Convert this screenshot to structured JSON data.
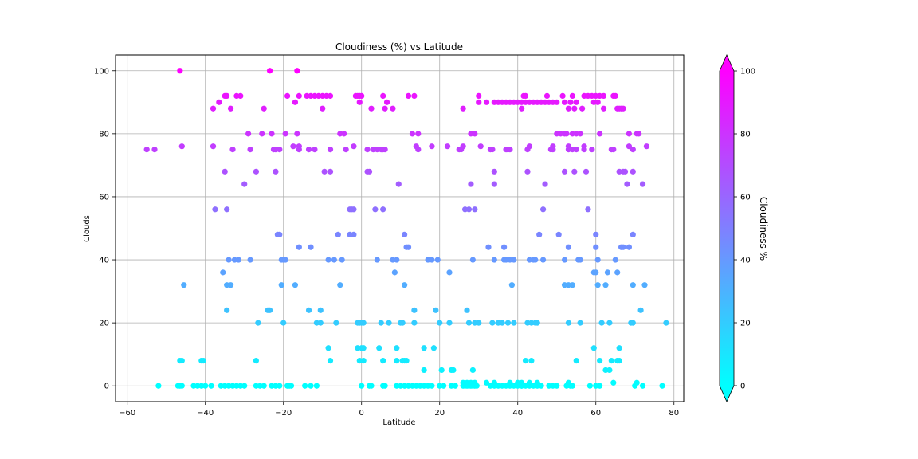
{
  "chart_data": {
    "type": "scatter",
    "title": "Cloudiness (%) vs Latitude",
    "xlabel": "Latitude",
    "ylabel": "Clouds",
    "xlim": [
      -63,
      82.5
    ],
    "ylim": [
      -5,
      105
    ],
    "xticks": [
      -60,
      -40,
      -20,
      0,
      20,
      40,
      60,
      80
    ],
    "yticks": [
      0,
      20,
      40,
      60,
      80,
      100
    ],
    "grid": true,
    "colorbar": {
      "label": "Cloudiness %",
      "ticks": [
        0,
        20,
        40,
        60,
        80,
        100
      ],
      "colormap": "cool",
      "color_low": "#00ffff",
      "color_high": "#ff00ff",
      "extend": "both"
    },
    "points": [
      [
        -55,
        75
      ],
      [
        -53,
        75
      ],
      [
        -46.5,
        100
      ],
      [
        -46,
        76
      ],
      [
        -45.5,
        32
      ],
      [
        -46.5,
        8
      ],
      [
        -46,
        8
      ],
      [
        -52,
        0
      ],
      [
        -47,
        0
      ],
      [
        -46.5,
        0
      ],
      [
        -46,
        0
      ],
      [
        -38,
        88
      ],
      [
        -38,
        76
      ],
      [
        -37.5,
        56
      ],
      [
        -36.5,
        90
      ],
      [
        -35,
        92
      ],
      [
        -34.5,
        92
      ],
      [
        -35,
        68
      ],
      [
        -34.5,
        56
      ],
      [
        -35.5,
        36
      ],
      [
        -34.5,
        32
      ],
      [
        -34,
        40
      ],
      [
        -33.5,
        32
      ],
      [
        -34.5,
        24
      ],
      [
        -33.5,
        88
      ],
      [
        -33,
        75
      ],
      [
        -32,
        92
      ],
      [
        -31,
        92
      ],
      [
        -31.5,
        40
      ],
      [
        -32.5,
        40
      ],
      [
        -30,
        64
      ],
      [
        -29,
        80
      ],
      [
        -28.5,
        75
      ],
      [
        -28.5,
        40
      ],
      [
        -43,
        0
      ],
      [
        -42,
        0
      ],
      [
        -41,
        0
      ],
      [
        -40,
        0
      ],
      [
        -41,
        8
      ],
      [
        -40.5,
        8
      ],
      [
        -38.5,
        0
      ],
      [
        -36,
        0
      ],
      [
        -35,
        0
      ],
      [
        -34,
        0
      ],
      [
        -33,
        0
      ],
      [
        -32,
        0
      ],
      [
        -31,
        0
      ],
      [
        -30,
        0
      ],
      [
        -27,
        68
      ],
      [
        -26.5,
        20
      ],
      [
        -27,
        8
      ],
      [
        -27,
        0
      ],
      [
        -26,
        0
      ],
      [
        -25,
        0
      ],
      [
        -23,
        0
      ],
      [
        -22,
        0
      ],
      [
        -21,
        0
      ],
      [
        -24,
        24
      ],
      [
        -23.5,
        24
      ],
      [
        -25,
        88
      ],
      [
        -25.5,
        80
      ],
      [
        -23.5,
        100
      ],
      [
        -23,
        80
      ],
      [
        -22.5,
        75
      ],
      [
        -22,
        68
      ],
      [
        -22,
        75
      ],
      [
        -21.5,
        48
      ],
      [
        -21,
        48
      ],
      [
        -21,
        75
      ],
      [
        -20.5,
        40
      ],
      [
        -20,
        40
      ],
      [
        -19.5,
        40
      ],
      [
        -20.5,
        32
      ],
      [
        -20,
        20
      ],
      [
        -19,
        92
      ],
      [
        -19.5,
        80
      ],
      [
        -18.5,
        0
      ],
      [
        -19,
        0
      ],
      [
        -18,
        0
      ],
      [
        -17.5,
        76
      ],
      [
        -17,
        90
      ],
      [
        -16.5,
        100
      ],
      [
        -16.5,
        80
      ],
      [
        -16,
        76
      ],
      [
        -16,
        75
      ],
      [
        -16,
        92
      ],
      [
        -16,
        44
      ],
      [
        -17,
        32
      ],
      [
        -14,
        92
      ],
      [
        -13,
        92
      ],
      [
        -12,
        92
      ],
      [
        -11,
        92
      ],
      [
        -13.5,
        75
      ],
      [
        -12,
        75
      ],
      [
        -13,
        44
      ],
      [
        -13.5,
        24
      ],
      [
        -11.5,
        20
      ],
      [
        -10.5,
        20
      ],
      [
        -10.5,
        24
      ],
      [
        -11.5,
        0
      ],
      [
        -14.5,
        0
      ],
      [
        -13,
        0
      ],
      [
        -10,
        88
      ],
      [
        -10,
        92
      ],
      [
        -9,
        92
      ],
      [
        -8,
        92
      ],
      [
        -9.5,
        68
      ],
      [
        -8,
        68
      ],
      [
        -8,
        75
      ],
      [
        -8.5,
        40
      ],
      [
        -7,
        40
      ],
      [
        -6,
        48
      ],
      [
        -5,
        40
      ],
      [
        -5.5,
        32
      ],
      [
        -6.5,
        20
      ],
      [
        -8.5,
        12
      ],
      [
        -8,
        8
      ],
      [
        -5.5,
        80
      ],
      [
        -4.5,
        80
      ],
      [
        -4,
        75
      ],
      [
        -3,
        56
      ],
      [
        -2.5,
        56
      ],
      [
        -2,
        56
      ],
      [
        -3,
        48
      ],
      [
        -2,
        48
      ],
      [
        -2,
        76
      ],
      [
        -1.5,
        92
      ],
      [
        -1,
        92
      ],
      [
        -0.5,
        92
      ],
      [
        0,
        92
      ],
      [
        -0.5,
        90
      ],
      [
        -1,
        20
      ],
      [
        -0.5,
        20
      ],
      [
        0,
        20
      ],
      [
        0.5,
        20
      ],
      [
        -1,
        12
      ],
      [
        0,
        12
      ],
      [
        0.5,
        12
      ],
      [
        -0.5,
        8
      ],
      [
        0.5,
        8
      ],
      [
        0,
        0
      ],
      [
        1.5,
        75
      ],
      [
        1.5,
        68
      ],
      [
        2,
        68
      ],
      [
        2.5,
        0
      ],
      [
        2,
        0
      ],
      [
        2.5,
        88
      ],
      [
        3,
        75
      ],
      [
        3.5,
        56
      ],
      [
        4,
        40
      ],
      [
        4,
        75
      ],
      [
        4.5,
        12
      ],
      [
        5,
        20
      ],
      [
        5.5,
        8
      ],
      [
        5.5,
        0
      ],
      [
        6,
        0
      ],
      [
        5,
        75
      ],
      [
        5.5,
        75
      ],
      [
        6,
        75
      ],
      [
        5.5,
        56
      ],
      [
        5.5,
        92
      ],
      [
        6,
        88
      ],
      [
        6.5,
        90
      ],
      [
        7,
        20
      ],
      [
        8,
        88
      ],
      [
        8,
        40
      ],
      [
        8.5,
        36
      ],
      [
        9,
        40
      ],
      [
        9,
        8
      ],
      [
        9,
        12
      ],
      [
        9.5,
        64
      ],
      [
        10,
        20
      ],
      [
        10.5,
        20
      ],
      [
        11,
        48
      ],
      [
        11,
        32
      ],
      [
        11.5,
        44
      ],
      [
        12,
        44
      ],
      [
        11,
        8
      ],
      [
        10.5,
        8
      ],
      [
        11.5,
        8
      ],
      [
        12,
        92
      ],
      [
        13,
        80
      ],
      [
        13.5,
        92
      ],
      [
        13.5,
        20
      ],
      [
        13.5,
        24
      ],
      [
        9,
        0
      ],
      [
        10,
        0
      ],
      [
        11,
        0
      ],
      [
        12,
        0
      ],
      [
        13,
        0
      ],
      [
        14,
        0
      ],
      [
        15,
        0
      ],
      [
        16,
        0
      ],
      [
        17,
        0
      ],
      [
        18,
        0
      ],
      [
        14.5,
        80
      ],
      [
        14,
        76
      ],
      [
        14.5,
        75
      ],
      [
        16,
        12
      ],
      [
        16,
        5
      ],
      [
        17,
        40
      ],
      [
        18,
        40
      ],
      [
        18,
        76
      ],
      [
        18.5,
        12
      ],
      [
        19,
        24
      ],
      [
        19.5,
        40
      ],
      [
        20,
        0
      ],
      [
        20,
        20
      ],
      [
        20.5,
        5
      ],
      [
        21,
        0
      ],
      [
        22,
        76
      ],
      [
        22.5,
        36
      ],
      [
        22.5,
        20
      ],
      [
        23,
        5
      ],
      [
        23.5,
        5
      ],
      [
        23,
        0
      ],
      [
        24,
        0
      ],
      [
        25,
        75
      ],
      [
        25.5,
        75
      ],
      [
        26,
        76
      ],
      [
        26,
        88
      ],
      [
        26.5,
        56
      ],
      [
        27,
        24
      ],
      [
        27.5,
        56
      ],
      [
        27.5,
        20
      ],
      [
        28,
        80
      ],
      [
        28,
        64
      ],
      [
        28.5,
        40
      ],
      [
        28.5,
        5
      ],
      [
        29,
        80
      ],
      [
        29,
        56
      ],
      [
        29,
        20
      ],
      [
        30,
        20
      ],
      [
        26,
        0
      ],
      [
        26.5,
        0
      ],
      [
        27,
        0
      ],
      [
        27.5,
        0
      ],
      [
        28,
        0
      ],
      [
        28.5,
        0
      ],
      [
        29,
        0
      ],
      [
        29.5,
        0
      ],
      [
        26,
        1
      ],
      [
        27,
        1
      ],
      [
        28,
        1
      ],
      [
        29,
        1
      ],
      [
        30,
        92
      ],
      [
        30,
        90
      ],
      [
        30.5,
        76
      ],
      [
        32,
        90
      ],
      [
        33,
        75
      ],
      [
        33.5,
        75
      ],
      [
        33.5,
        20
      ],
      [
        34,
        40
      ],
      [
        34,
        68
      ],
      [
        34,
        64
      ],
      [
        34,
        90
      ],
      [
        32.5,
        44
      ],
      [
        32,
        1
      ],
      [
        33,
        0
      ],
      [
        34,
        0
      ],
      [
        35,
        0
      ],
      [
        36,
        0
      ],
      [
        34,
        1
      ],
      [
        35,
        20
      ],
      [
        36,
        20
      ],
      [
        36.5,
        44
      ],
      [
        36.5,
        40
      ],
      [
        37,
        75
      ],
      [
        37.5,
        75
      ],
      [
        38,
        75
      ],
      [
        35,
        90
      ],
      [
        36,
        90
      ],
      [
        37,
        90
      ],
      [
        38,
        90
      ],
      [
        39,
        90
      ],
      [
        40,
        90
      ],
      [
        41,
        90
      ],
      [
        42,
        90
      ],
      [
        43,
        90
      ],
      [
        44,
        90
      ],
      [
        45,
        90
      ],
      [
        46,
        90
      ],
      [
        47,
        90
      ],
      [
        48,
        90
      ],
      [
        49,
        90
      ],
      [
        50,
        90
      ],
      [
        37.5,
        20
      ],
      [
        37,
        40
      ],
      [
        38,
        40
      ],
      [
        38.5,
        32
      ],
      [
        39,
        40
      ],
      [
        39,
        20
      ],
      [
        38,
        0
      ],
      [
        39,
        0
      ],
      [
        40,
        0
      ],
      [
        41,
        0
      ],
      [
        37,
        0
      ],
      [
        38,
        1
      ],
      [
        40,
        1
      ],
      [
        41,
        88
      ],
      [
        41.5,
        92
      ],
      [
        42,
        92
      ],
      [
        42.5,
        68
      ],
      [
        42.5,
        75
      ],
      [
        43,
        76
      ],
      [
        43,
        40
      ],
      [
        44,
        40
      ],
      [
        44.5,
        40
      ],
      [
        42.5,
        20
      ],
      [
        43.5,
        20
      ],
      [
        44.5,
        20
      ],
      [
        45,
        20
      ],
      [
        42,
        8
      ],
      [
        43.5,
        8
      ],
      [
        41,
        0
      ],
      [
        42,
        0
      ],
      [
        43,
        0
      ],
      [
        44,
        0
      ],
      [
        45,
        0
      ],
      [
        46,
        0
      ],
      [
        41,
        1
      ],
      [
        43,
        1
      ],
      [
        45,
        1
      ],
      [
        45.5,
        48
      ],
      [
        46.5,
        40
      ],
      [
        46.5,
        56
      ],
      [
        47,
        64
      ],
      [
        47.5,
        92
      ],
      [
        48,
        0
      ],
      [
        49,
        0
      ],
      [
        50,
        0
      ],
      [
        48.5,
        75
      ],
      [
        49,
        76
      ],
      [
        49,
        75
      ],
      [
        50,
        80
      ],
      [
        50.5,
        48
      ],
      [
        51,
        80
      ],
      [
        52,
        80
      ],
      [
        52.5,
        80
      ],
      [
        51.5,
        92
      ],
      [
        52,
        68
      ],
      [
        52,
        40
      ],
      [
        52,
        32
      ],
      [
        53,
        32
      ],
      [
        54,
        32
      ],
      [
        53,
        44
      ],
      [
        53,
        20
      ],
      [
        52.5,
        0
      ],
      [
        53.5,
        0
      ],
      [
        54,
        0
      ],
      [
        53,
        1
      ],
      [
        52,
        90
      ],
      [
        53,
        88
      ],
      [
        54,
        92
      ],
      [
        54.5,
        88
      ],
      [
        53.5,
        90
      ],
      [
        55,
        90
      ],
      [
        54,
        75
      ],
      [
        53,
        76
      ],
      [
        53,
        75
      ],
      [
        55,
        75
      ],
      [
        54,
        80
      ],
      [
        55,
        80
      ],
      [
        56,
        80
      ],
      [
        54.5,
        68
      ],
      [
        55,
        8
      ],
      [
        55.5,
        40
      ],
      [
        56,
        40
      ],
      [
        56,
        20
      ],
      [
        56.5,
        88
      ],
      [
        57,
        92
      ],
      [
        57,
        75
      ],
      [
        57,
        76
      ],
      [
        57.5,
        68
      ],
      [
        58,
        56
      ],
      [
        58,
        92
      ],
      [
        58.5,
        0
      ],
      [
        59,
        75
      ],
      [
        59.5,
        12
      ],
      [
        59.5,
        36
      ],
      [
        60,
        48
      ],
      [
        60,
        44
      ],
      [
        60,
        36
      ],
      [
        60.5,
        40
      ],
      [
        60.5,
        32
      ],
      [
        60,
        0
      ],
      [
        61,
        0
      ],
      [
        61,
        8
      ],
      [
        61.5,
        20
      ],
      [
        59,
        92
      ],
      [
        60,
        92
      ],
      [
        61,
        92
      ],
      [
        62,
        92
      ],
      [
        59.5,
        90
      ],
      [
        60.5,
        90
      ],
      [
        61,
        80
      ],
      [
        62,
        88
      ],
      [
        62.5,
        32
      ],
      [
        63,
        36
      ],
      [
        63.5,
        20
      ],
      [
        64,
        75
      ],
      [
        64.5,
        75
      ],
      [
        62.5,
        5
      ],
      [
        63.5,
        5
      ],
      [
        64,
        8
      ],
      [
        64.5,
        92
      ],
      [
        65,
        92
      ],
      [
        64.5,
        1
      ],
      [
        65,
        40
      ],
      [
        65.5,
        36
      ],
      [
        65.5,
        88
      ],
      [
        66,
        88
      ],
      [
        66.5,
        88
      ],
      [
        67,
        88
      ],
      [
        65.5,
        8
      ],
      [
        66,
        8
      ],
      [
        66,
        12
      ],
      [
        66.5,
        44
      ],
      [
        66,
        68
      ],
      [
        67,
        68
      ],
      [
        67.5,
        68
      ],
      [
        67,
        44
      ],
      [
        68,
        64
      ],
      [
        68.5,
        76
      ],
      [
        68.5,
        80
      ],
      [
        68.5,
        44
      ],
      [
        69,
        20
      ],
      [
        69.5,
        20
      ],
      [
        69.5,
        48
      ],
      [
        69.5,
        32
      ],
      [
        69.5,
        68
      ],
      [
        69.5,
        75
      ],
      [
        70,
        0
      ],
      [
        70.5,
        1
      ],
      [
        70.5,
        80
      ],
      [
        71,
        80
      ],
      [
        71.5,
        24
      ],
      [
        72,
        0
      ],
      [
        72,
        64
      ],
      [
        72.5,
        32
      ],
      [
        73,
        76
      ],
      [
        77,
        0
      ],
      [
        78,
        20
      ]
    ]
  }
}
